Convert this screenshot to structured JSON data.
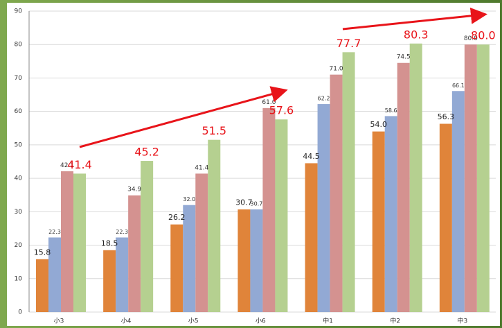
{
  "chart_data": {
    "type": "bar",
    "categories": [
      "小3",
      "小4",
      "小5",
      "小6",
      "中1",
      "中2",
      "中3"
    ],
    "series": [
      {
        "color": "#e0843a",
        "values": [
          15.8,
          18.5,
          26.2,
          30.7,
          44.5,
          54.0,
          56.3
        ],
        "value_labels": [
          "15.8",
          "18.5",
          "26.2",
          "30.7",
          "44.5",
          "54.0",
          "56.3"
        ]
      },
      {
        "color": "#92a9d4",
        "values": [
          22.3,
          22.3,
          32.0,
          30.7,
          62.2,
          58.6,
          66.1
        ],
        "value_labels": [
          "22.3",
          "22.3",
          "32.0",
          "30.7",
          "62.2",
          "58.6",
          "66.1"
        ]
      },
      {
        "color": "#d49290",
        "values": [
          42.1,
          34.9,
          41.4,
          61.0,
          71.0,
          74.5,
          80.0
        ],
        "value_labels": [
          "42.1",
          "34.9",
          "41.4",
          "61.0",
          "71.0",
          "74.5",
          "80.0"
        ]
      },
      {
        "color": "#b5d090",
        "values": [
          41.4,
          45.2,
          51.5,
          57.6,
          77.7,
          80.3,
          80.0
        ],
        "value_labels": [
          "41.4",
          "45.2",
          "51.5",
          "57.6",
          "77.7",
          "80.3",
          "80.0"
        ]
      }
    ],
    "ylim": [
      0,
      90
    ],
    "yticks": [
      0,
      10,
      20,
      30,
      40,
      50,
      60,
      70,
      80,
      90
    ],
    "grid": true
  }
}
